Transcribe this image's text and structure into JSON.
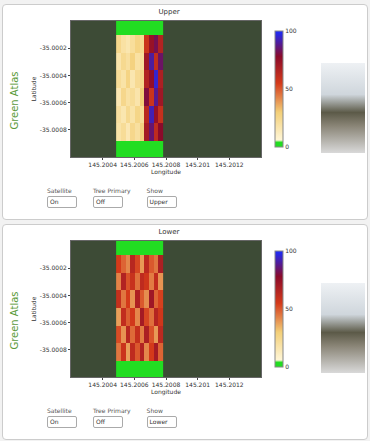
{
  "brand": "Green Atlas",
  "chart_data": [
    {
      "type": "heatmap",
      "title": "Upper",
      "x_label": "Longitude",
      "y_label": "Latitude",
      "x": [
        145.2005,
        145.20053,
        145.20056,
        145.20059,
        145.20062,
        145.20065,
        145.20068,
        145.20071,
        145.20074,
        145.20077
      ],
      "y": [
        -35.00095,
        -35.00082,
        -35.00069,
        -35.00056,
        -35.00043,
        -35.0003,
        -35.00017,
        -35.00004
      ],
      "cells": [
        [
          2,
          2,
          2,
          2,
          2,
          2,
          2,
          2,
          2,
          2
        ],
        [
          18,
          22,
          15,
          25,
          20,
          28,
          70,
          85,
          62,
          78
        ],
        [
          20,
          16,
          24,
          18,
          26,
          22,
          64,
          92,
          75,
          60
        ],
        [
          15,
          25,
          19,
          22,
          17,
          30,
          80,
          58,
          88,
          72
        ],
        [
          22,
          18,
          27,
          16,
          23,
          25,
          66,
          76,
          95,
          68
        ],
        [
          17,
          24,
          20,
          28,
          19,
          21,
          72,
          90,
          61,
          84
        ],
        [
          25,
          19,
          16,
          21,
          27,
          24,
          58,
          74,
          82,
          66
        ],
        [
          2,
          2,
          2,
          2,
          2,
          2,
          2,
          2,
          2,
          2
        ]
      ],
      "xlim": [
        145.2002,
        145.2014
      ],
      "xticks": [
        145.2004,
        145.2006,
        145.2008,
        145.201,
        145.2012
      ],
      "ylim": [
        -35.001,
        -35.0
      ],
      "yticks": [
        -35.0008,
        -35.0006,
        -35.0004,
        -35.0002
      ],
      "colorbar_range": [
        0,
        100
      ],
      "colorbar_ticks": [
        0,
        50,
        100
      ],
      "grid": false
    },
    {
      "type": "heatmap",
      "title": "Lower",
      "x_label": "Longitude",
      "y_label": "Latitude",
      "x": [
        145.2005,
        145.20053,
        145.20056,
        145.20059,
        145.20062,
        145.20065,
        145.20068,
        145.20071,
        145.20074,
        145.20077
      ],
      "y": [
        -35.00095,
        -35.00082,
        -35.00069,
        -35.00056,
        -35.00043,
        -35.0003,
        -35.00017,
        -35.00004
      ],
      "cells": [
        [
          2,
          2,
          2,
          2,
          2,
          2,
          2,
          2,
          2,
          2
        ],
        [
          45,
          58,
          38,
          62,
          50,
          66,
          42,
          55,
          70,
          48
        ],
        [
          52,
          40,
          64,
          47,
          60,
          44,
          68,
          51,
          39,
          63
        ],
        [
          38,
          61,
          49,
          56,
          42,
          70,
          53,
          46,
          65,
          57
        ],
        [
          60,
          45,
          55,
          40,
          67,
          50,
          41,
          72,
          48,
          54
        ],
        [
          43,
          66,
          51,
          59,
          46,
          62,
          57,
          44,
          61,
          40
        ],
        [
          55,
          48,
          42,
          64,
          53,
          39,
          63,
          50,
          45,
          68
        ],
        [
          2,
          2,
          2,
          2,
          2,
          2,
          2,
          2,
          2,
          2
        ]
      ],
      "xlim": [
        145.2002,
        145.2014
      ],
      "xticks": [
        145.2004,
        145.2006,
        145.2008,
        145.201,
        145.2012
      ],
      "ylim": [
        -35.001,
        -35.0
      ],
      "yticks": [
        -35.0008,
        -35.0006,
        -35.0004,
        -35.0002
      ],
      "colorbar_range": [
        0,
        100
      ],
      "colorbar_ticks": [
        0,
        50,
        100
      ],
      "grid": false
    }
  ],
  "controls": [
    [
      {
        "label": "Satellite",
        "value": "On"
      },
      {
        "label": "Tree Primary",
        "value": "Off"
      },
      {
        "label": "Show",
        "value": "Upper"
      }
    ],
    [
      {
        "label": "Satellite",
        "value": "On"
      },
      {
        "label": "Tree Primary",
        "value": "Off"
      },
      {
        "label": "Show",
        "value": "Lower"
      }
    ]
  ]
}
